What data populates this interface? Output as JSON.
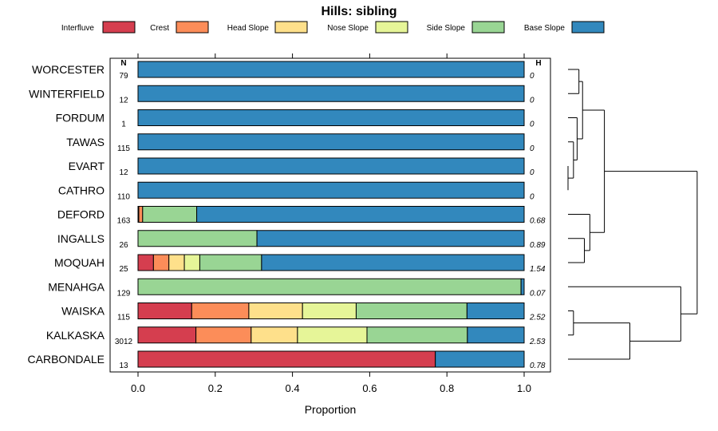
{
  "chart_data": {
    "type": "bar",
    "orientation": "horizontal",
    "stacked": true,
    "title": "Hills: sibling",
    "xlabel": "Proportion",
    "ylabel": "",
    "xlim": [
      0,
      1
    ],
    "x_ticks": [
      "0.0",
      "0.2",
      "0.4",
      "0.6",
      "0.8",
      "1.0"
    ],
    "n_header": "N",
    "h_header": "H",
    "legend_position": "top",
    "series": [
      {
        "name": "Interfluve",
        "color": "#D53E4F"
      },
      {
        "name": "Crest",
        "color": "#FC8D59"
      },
      {
        "name": "Head Slope",
        "color": "#FEE08B"
      },
      {
        "name": "Nose Slope",
        "color": "#E6F598"
      },
      {
        "name": "Side Slope",
        "color": "#99D594"
      },
      {
        "name": "Base Slope",
        "color": "#3288BD"
      }
    ],
    "categories": [
      {
        "name": "WORCESTER",
        "n": "79",
        "h": "0",
        "values": [
          0,
          0,
          0,
          0,
          0,
          1.0
        ]
      },
      {
        "name": "WINTERFIELD",
        "n": "12",
        "h": "0",
        "values": [
          0,
          0,
          0,
          0,
          0,
          1.0
        ]
      },
      {
        "name": "FORDUM",
        "n": "1",
        "h": "0",
        "values": [
          0,
          0,
          0,
          0,
          0,
          1.0
        ]
      },
      {
        "name": "TAWAS",
        "n": "115",
        "h": "0",
        "values": [
          0,
          0,
          0,
          0,
          0,
          1.0
        ]
      },
      {
        "name": "EVART",
        "n": "12",
        "h": "0",
        "values": [
          0,
          0,
          0,
          0,
          0,
          1.0
        ]
      },
      {
        "name": "CATHRO",
        "n": "110",
        "h": "0",
        "values": [
          0,
          0,
          0,
          0,
          0,
          1.0
        ]
      },
      {
        "name": "DEFORD",
        "n": "163",
        "h": "0.68",
        "values": [
          0.002,
          0.01,
          0,
          0,
          0.14,
          0.848
        ]
      },
      {
        "name": "INGALLS",
        "n": "26",
        "h": "0.89",
        "values": [
          0,
          0,
          0,
          0,
          0.308,
          0.692
        ]
      },
      {
        "name": "MOQUAH",
        "n": "25",
        "h": "1.54",
        "values": [
          0.04,
          0.04,
          0.04,
          0.04,
          0.16,
          0.68
        ]
      },
      {
        "name": "MENAHGA",
        "n": "129",
        "h": "0.07",
        "values": [
          0,
          0,
          0,
          0,
          0.992,
          0.008
        ]
      },
      {
        "name": "WAISKA",
        "n": "115",
        "h": "2.52",
        "values": [
          0.139,
          0.148,
          0.139,
          0.139,
          0.287,
          0.148
        ]
      },
      {
        "name": "KALKASKA",
        "n": "3012",
        "h": "2.53",
        "values": [
          0.15,
          0.143,
          0.12,
          0.18,
          0.26,
          0.147
        ]
      },
      {
        "name": "CARBONDALE",
        "n": "13",
        "h": "0.78",
        "values": [
          0.77,
          0,
          0,
          0,
          0,
          0.23
        ]
      }
    ],
    "dendrogram_merges": [
      {
        "members": [
          "WORCESTER",
          "WINTERFIELD"
        ],
        "height": 0.06
      },
      {
        "members": [
          "EVART",
          "CATHRO"
        ],
        "height": 0.0
      },
      {
        "members": [
          "TAWAS",
          "EVART+CATHRO"
        ],
        "height": 0.03
      },
      {
        "members": [
          "FORDUM",
          "TAWAS+EVART+CATHRO"
        ],
        "height": 0.05
      },
      {
        "members": [
          "WORCESTER+WINTERFIELD",
          "FORDUM+TAWAS+EVART+CATHRO"
        ],
        "height": 0.08
      },
      {
        "members": [
          "INGALLS",
          "MOQUAH"
        ],
        "height": 0.09
      },
      {
        "members": [
          "DEFORD",
          "INGALLS+MOQUAH"
        ],
        "height": 0.12
      },
      {
        "members": [
          "top-group",
          "DEFORD+INGALLS+MOQUAH"
        ],
        "height": 0.2
      },
      {
        "members": [
          "WAISKA",
          "KALKASKA"
        ],
        "height": 0.03
      },
      {
        "members": [
          "WAISKA+KALKASKA",
          "CARBONDALE"
        ],
        "height": 0.34
      },
      {
        "members": [
          "MENAHGA",
          "WAISKA+KALKASKA+CARBONDALE"
        ],
        "height": 0.62
      },
      {
        "members": [
          "all-upper",
          "MENAHGA+WAISKA+KALKASKA+CARBONDALE"
        ],
        "height": 0.71
      }
    ]
  }
}
